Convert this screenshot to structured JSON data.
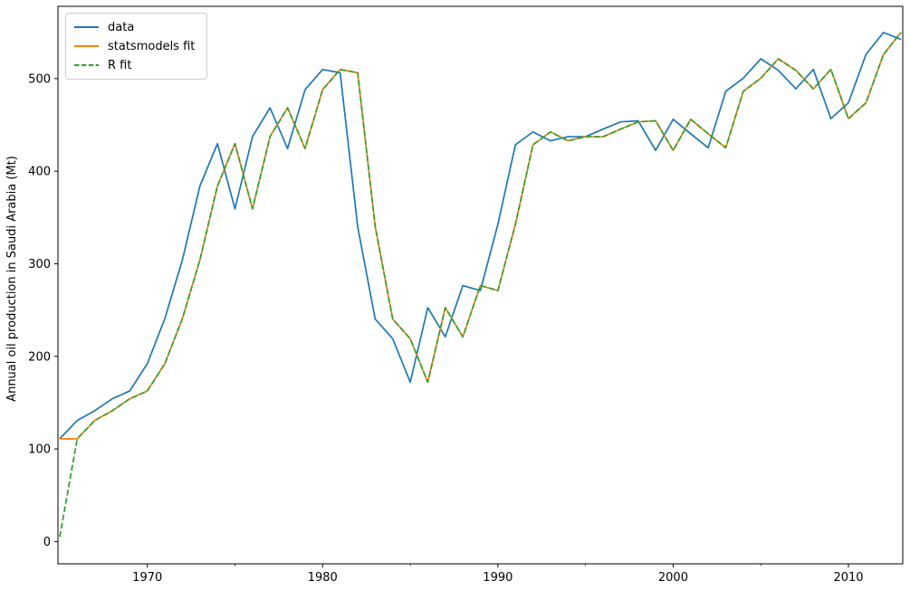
{
  "axes": {
    "ylabel": "Annual oil production in Saudi Arabia (Mt)",
    "spine_color": "#000000",
    "background": "#ffffff",
    "legend_border_color": "#cccccc"
  },
  "chart_data": {
    "type": "line",
    "ylabel": "Annual oil production in Saudi Arabia (Mt)",
    "grid": false,
    "legend_position": "upper left",
    "xlim": [
      1964.9,
      2013.1
    ],
    "ylim": [
      -24,
      578
    ],
    "x_major_ticks": [
      1970,
      1980,
      1990,
      2000,
      2010
    ],
    "x_minor_ticks": [
      1975,
      1985,
      1995,
      2005
    ],
    "y_major_ticks": [
      0,
      100,
      200,
      300,
      400,
      500
    ],
    "x": [
      1965,
      1966,
      1967,
      1968,
      1969,
      1970,
      1971,
      1972,
      1973,
      1974,
      1975,
      1976,
      1977,
      1978,
      1979,
      1980,
      1981,
      1982,
      1983,
      1984,
      1985,
      1986,
      1987,
      1988,
      1989,
      1990,
      1991,
      1992,
      1993,
      1994,
      1995,
      1996,
      1997,
      1998,
      1999,
      2000,
      2001,
      2002,
      2003,
      2004,
      2005,
      2006,
      2007,
      2008,
      2009,
      2010,
      2011,
      2012,
      2013
    ],
    "series": [
      {
        "name": "data",
        "color": "#1f77b4",
        "style": "solid",
        "values": [
          111.0,
          130.8,
          141.3,
          154.2,
          162.7,
          192.2,
          240.8,
          304.2,
          384.0,
          429.7,
          359.3,
          437.3,
          468.4,
          424.4,
          488.0,
          509.8,
          506.3,
          340.2,
          240.3,
          219.0,
          172.1,
          252.6,
          221.1,
          276.5,
          271.1,
          342.6,
          428.4,
          442.4,
          432.8,
          437.2,
          437.2,
          445.4,
          453.2,
          454.4,
          422.4,
          456.0,
          440.4,
          425.2,
          486.2,
          500.4,
          521.3,
          508.9,
          488.9,
          509.9,
          456.7,
          473.8,
          526.0,
          549.8,
          542.3
        ]
      },
      {
        "name": "statsmodels fit",
        "color": "#ff7f0e",
        "style": "solid",
        "values": [
          111.0,
          111.0,
          130.8,
          141.3,
          154.2,
          162.7,
          192.2,
          240.8,
          304.2,
          384.0,
          429.7,
          359.3,
          437.3,
          468.4,
          424.4,
          488.0,
          509.8,
          506.3,
          340.2,
          240.3,
          219.0,
          172.1,
          252.6,
          221.1,
          276.5,
          271.1,
          342.6,
          428.4,
          442.4,
          432.8,
          437.2,
          437.2,
          445.4,
          453.2,
          454.4,
          422.4,
          456.0,
          440.4,
          425.2,
          486.2,
          500.4,
          521.3,
          508.9,
          488.9,
          509.9,
          456.7,
          473.8,
          526.0,
          549.8
        ]
      },
      {
        "name": "R fit",
        "color": "#2ca02c",
        "style": "dashed",
        "values": [
          5.0,
          111.0,
          130.8,
          141.3,
          154.2,
          162.7,
          192.2,
          240.8,
          304.2,
          384.0,
          429.7,
          359.3,
          437.3,
          468.4,
          424.4,
          488.0,
          509.8,
          506.3,
          340.2,
          240.3,
          219.0,
          172.1,
          252.6,
          221.1,
          276.5,
          271.1,
          342.6,
          428.4,
          442.4,
          432.8,
          437.2,
          437.2,
          445.4,
          453.2,
          454.4,
          422.4,
          456.0,
          440.4,
          425.2,
          486.2,
          500.4,
          521.3,
          508.9,
          488.9,
          509.9,
          456.7,
          473.8,
          526.0,
          549.8
        ]
      }
    ]
  }
}
